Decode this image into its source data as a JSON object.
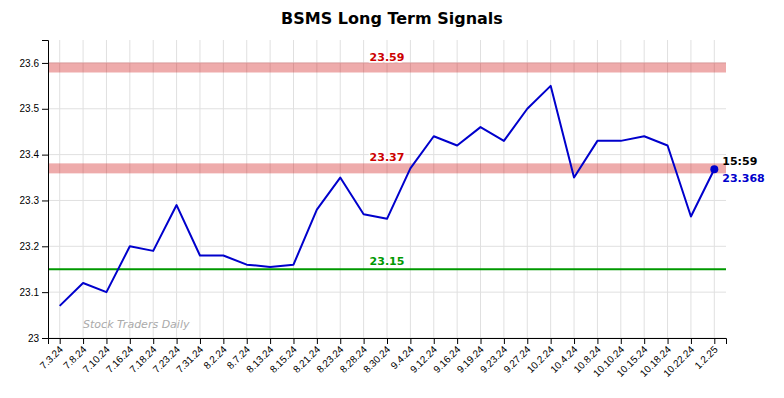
{
  "chart_data": {
    "type": "line",
    "title": "BSMS Long Term Signals",
    "categories": [
      "7.3.24",
      "7.8.24",
      "7.10.24",
      "7.16.24",
      "7.18.24",
      "7.23.24",
      "7.31.24",
      "8.2.24",
      "8.7.24",
      "8.13.24",
      "8.15.24",
      "8.21.24",
      "8.23.24",
      "8.28.24",
      "8.30.24",
      "9.4.24",
      "9.12.24",
      "9.16.24",
      "9.19.24",
      "9.23.24",
      "9.27.24",
      "10.2.24",
      "10.4.24",
      "10.8.24",
      "10.10.24",
      "10.15.24",
      "10.18.24",
      "10.22.24",
      "1.2.25"
    ],
    "values": [
      23.07,
      23.12,
      23.1,
      23.2,
      23.19,
      23.29,
      23.18,
      23.18,
      23.16,
      23.155,
      23.16,
      23.28,
      23.35,
      23.27,
      23.26,
      23.37,
      23.44,
      23.42,
      23.46,
      23.43,
      23.5,
      23.55,
      23.35,
      23.43,
      23.43,
      23.44,
      23.42,
      23.265,
      23.368
    ],
    "color": "#0000cc",
    "marker": "last",
    "ylim": [
      23.0,
      23.65
    ],
    "yticks": [
      23,
      23.1,
      23.2,
      23.3,
      23.4,
      23.5,
      23.6
    ],
    "grid": true,
    "reference_lines": [
      {
        "value": 23.59,
        "color": "#cc0000",
        "line_style": "band"
      },
      {
        "value": 23.37,
        "color": "#cc0000",
        "line_style": "band"
      },
      {
        "value": 23.15,
        "color": "#009900",
        "line_style": "solid"
      }
    ],
    "endpoint_label": "15:59",
    "watermark": "Stock Traders Daily"
  }
}
